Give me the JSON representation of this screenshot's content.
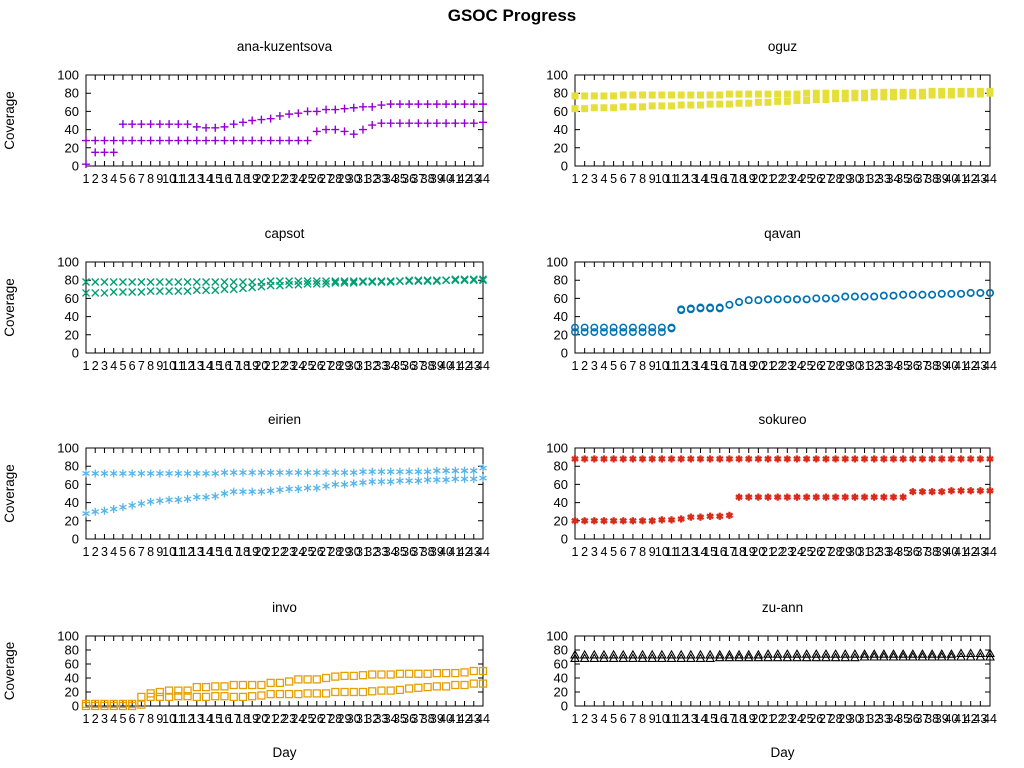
{
  "title": "GSOC Progress",
  "axes": {
    "y_label": "Coverage",
    "x_label": "Day",
    "y_ticks": [
      0,
      20,
      40,
      60,
      80,
      100
    ],
    "x_ticks": [
      1,
      2,
      3,
      4,
      5,
      6,
      7,
      8,
      9,
      10,
      11,
      12,
      13,
      14,
      15,
      16,
      17,
      18,
      19,
      20,
      21,
      22,
      23,
      24,
      25,
      26,
      27,
      28,
      29,
      30,
      31,
      32,
      33,
      34,
      35,
      36,
      37,
      38,
      39,
      40,
      41,
      42,
      43,
      44
    ],
    "y_range": [
      0,
      100
    ],
    "x_range": [
      1,
      44
    ],
    "grid": false,
    "legend": "none"
  },
  "chart_data": [
    {
      "type": "scatter",
      "title": "ana-kuzentsova",
      "marker": "plus",
      "color": "#9400d3",
      "ylim": [
        0,
        100
      ],
      "series": [
        {
          "name": "series-1",
          "values": [
            28,
            28,
            28,
            28,
            46,
            46,
            46,
            46,
            46,
            46,
            46,
            46,
            43,
            42,
            42,
            43,
            46,
            48,
            50,
            51,
            52,
            55,
            57,
            58,
            60,
            60,
            62,
            62,
            63,
            64,
            65,
            65,
            67,
            68,
            68,
            68,
            68,
            68,
            68,
            68,
            68,
            68,
            68,
            68
          ]
        },
        {
          "name": "series-2",
          "values": [
            2,
            15,
            15,
            15,
            28,
            28,
            28,
            28,
            28,
            28,
            28,
            28,
            28,
            28,
            28,
            28,
            28,
            28,
            28,
            28,
            28,
            28,
            28,
            28,
            28,
            38,
            40,
            40,
            38,
            35,
            40,
            45,
            47,
            47,
            47,
            47,
            47,
            47,
            47,
            47,
            47,
            47,
            47,
            48
          ]
        }
      ]
    },
    {
      "type": "scatter",
      "title": "oguz",
      "marker": "fsquare",
      "color": "#e6df3a",
      "ylim": [
        0,
        100
      ],
      "series": [
        {
          "name": "series-1",
          "values": [
            77,
            77,
            77,
            77,
            77,
            78,
            78,
            78,
            78,
            78,
            78,
            78,
            78,
            78,
            78,
            78,
            79,
            79,
            79,
            79,
            79,
            79,
            79,
            79,
            80,
            80,
            80,
            80,
            80,
            80,
            80,
            81,
            81,
            81,
            81,
            81,
            81,
            82,
            82,
            82,
            82,
            82,
            82,
            82
          ]
        },
        {
          "name": "series-2",
          "values": [
            63,
            63,
            64,
            64,
            64,
            65,
            65,
            65,
            66,
            66,
            66,
            67,
            67,
            67,
            68,
            68,
            68,
            69,
            69,
            70,
            70,
            71,
            71,
            72,
            72,
            73,
            73,
            74,
            74,
            75,
            75,
            76,
            76,
            76,
            77,
            77,
            77,
            78,
            78,
            78,
            79,
            79,
            79,
            80
          ]
        }
      ]
    },
    {
      "type": "scatter",
      "title": "capsot",
      "marker": "cross",
      "color": "#009e73",
      "ylim": [
        0,
        100
      ],
      "series": [
        {
          "name": "series-1",
          "values": [
            78,
            78,
            78,
            78,
            78,
            78,
            78,
            78,
            78,
            78,
            78,
            78,
            78,
            78,
            78,
            78,
            78,
            78,
            78,
            78,
            79,
            79,
            79,
            79,
            79,
            79,
            79,
            79,
            79,
            79,
            79,
            79,
            79,
            79,
            79,
            80,
            80,
            80,
            80,
            80,
            81,
            81,
            81,
            81
          ]
        },
        {
          "name": "series-2",
          "values": [
            66,
            66,
            66,
            67,
            67,
            67,
            67,
            68,
            68,
            68,
            68,
            68,
            69,
            69,
            69,
            70,
            70,
            71,
            72,
            73,
            74,
            74,
            75,
            75,
            76,
            76,
            76,
            77,
            77,
            77,
            78,
            78,
            78,
            78,
            79,
            79,
            79,
            79,
            79,
            80,
            80,
            80,
            80,
            80
          ]
        }
      ]
    },
    {
      "type": "scatter",
      "title": "qavan",
      "marker": "circle",
      "color": "#0072b2",
      "ylim": [
        0,
        100
      ],
      "series": [
        {
          "name": "series-1",
          "values": [
            28,
            28,
            28,
            28,
            28,
            28,
            28,
            28,
            28,
            28,
            28,
            48,
            49,
            50,
            50,
            50,
            53,
            56,
            58,
            58,
            59,
            59,
            59,
            59,
            59,
            60,
            60,
            60,
            62,
            62,
            62,
            62,
            63,
            63,
            64,
            64,
            64,
            64,
            65,
            65,
            65,
            66,
            66,
            66
          ]
        },
        {
          "name": "series-2",
          "values": [
            23,
            23,
            23,
            23,
            23,
            23,
            23,
            23,
            23,
            23,
            27,
            47,
            48,
            49,
            49,
            49,
            53,
            56,
            58,
            58,
            59,
            59,
            59,
            59,
            59,
            60,
            60,
            60,
            62,
            62,
            62,
            62,
            63,
            63,
            64,
            64,
            64,
            64,
            65,
            65,
            65,
            66,
            66,
            66
          ]
        }
      ]
    },
    {
      "type": "scatter",
      "title": "eirien",
      "marker": "asterisk",
      "color": "#56b4e9",
      "ylim": [
        0,
        100
      ],
      "series": [
        {
          "name": "series-1",
          "values": [
            72,
            72,
            72,
            72,
            72,
            72,
            72,
            72,
            72,
            72,
            72,
            72,
            72,
            72,
            72,
            73,
            73,
            73,
            73,
            73,
            73,
            73,
            73,
            73,
            73,
            73,
            73,
            73,
            73,
            73,
            74,
            74,
            74,
            74,
            74,
            74,
            74,
            74,
            75,
            75,
            75,
            75,
            75,
            78
          ]
        },
        {
          "name": "series-2",
          "values": [
            28,
            30,
            31,
            33,
            35,
            37,
            39,
            41,
            42,
            43,
            43,
            44,
            46,
            46,
            47,
            50,
            52,
            52,
            52,
            52,
            53,
            54,
            55,
            55,
            56,
            56,
            58,
            60,
            60,
            61,
            62,
            63,
            63,
            63,
            64,
            64,
            64,
            65,
            65,
            65,
            66,
            66,
            66,
            67
          ]
        }
      ]
    },
    {
      "type": "scatter",
      "title": "sokureo",
      "marker": "fstar",
      "color": "#d92b1a",
      "ylim": [
        0,
        100
      ],
      "series": [
        {
          "name": "series-1",
          "values": [
            88,
            88,
            88,
            88,
            88,
            88,
            88,
            88,
            88,
            88,
            88,
            88,
            88,
            88,
            88,
            88,
            88,
            88,
            88,
            88,
            88,
            88,
            88,
            88,
            88,
            88,
            88,
            88,
            88,
            88,
            88,
            88,
            88,
            88,
            88,
            88,
            88,
            88,
            88,
            88,
            88,
            88,
            88,
            88
          ]
        },
        {
          "name": "series-2",
          "values": [
            20,
            20,
            20,
            20,
            20,
            20,
            20,
            20,
            20,
            21,
            21,
            22,
            24,
            24,
            25,
            25,
            26,
            46,
            46,
            46,
            46,
            46,
            46,
            46,
            46,
            46,
            46,
            46,
            46,
            46,
            46,
            46,
            46,
            46,
            46,
            52,
            52,
            52,
            52,
            53,
            53,
            53,
            53,
            53
          ]
        }
      ]
    },
    {
      "type": "scatter",
      "title": "invo",
      "marker": "square",
      "color": "#e69f00",
      "ylim": [
        0,
        100
      ],
      "series": [
        {
          "name": "series-1",
          "values": [
            3,
            3,
            3,
            3,
            3,
            3,
            13,
            18,
            20,
            22,
            22,
            22,
            27,
            27,
            28,
            28,
            30,
            30,
            30,
            30,
            33,
            33,
            35,
            38,
            38,
            38,
            40,
            42,
            43,
            43,
            44,
            45,
            45,
            45,
            46,
            46,
            46,
            46,
            47,
            47,
            47,
            48,
            50,
            50
          ]
        },
        {
          "name": "series-2",
          "values": [
            0,
            0,
            0,
            0,
            0,
            0,
            2,
            13,
            13,
            13,
            14,
            14,
            13,
            13,
            14,
            14,
            13,
            13,
            14,
            15,
            17,
            17,
            17,
            17,
            18,
            18,
            18,
            20,
            20,
            20,
            20,
            21,
            22,
            22,
            23,
            25,
            26,
            27,
            28,
            28,
            30,
            30,
            32,
            32
          ]
        }
      ]
    },
    {
      "type": "scatter",
      "title": "zu-ann",
      "marker": "triangle",
      "color": "#000000",
      "ylim": [
        0,
        100
      ],
      "series": [
        {
          "name": "series-1",
          "values": [
            73,
            73,
            73,
            73,
            73,
            73,
            73,
            73,
            73,
            73,
            73,
            73,
            73,
            73,
            73,
            73,
            73,
            73,
            73,
            73,
            74,
            74,
            74,
            74,
            74,
            74,
            74,
            74,
            74,
            74,
            74,
            74,
            74,
            74,
            74,
            74,
            74,
            74,
            74,
            74,
            75,
            75,
            75,
            75
          ]
        },
        {
          "name": "series-2",
          "values": [
            68,
            68,
            68,
            68,
            68,
            68,
            68,
            68,
            68,
            68,
            68,
            68,
            68,
            68,
            68,
            69,
            69,
            69,
            69,
            69,
            69,
            69,
            69,
            69,
            69,
            69,
            69,
            69,
            69,
            69,
            70,
            70,
            70,
            70,
            70,
            70,
            70,
            70,
            70,
            70,
            70,
            70,
            70,
            70
          ]
        }
      ]
    }
  ]
}
